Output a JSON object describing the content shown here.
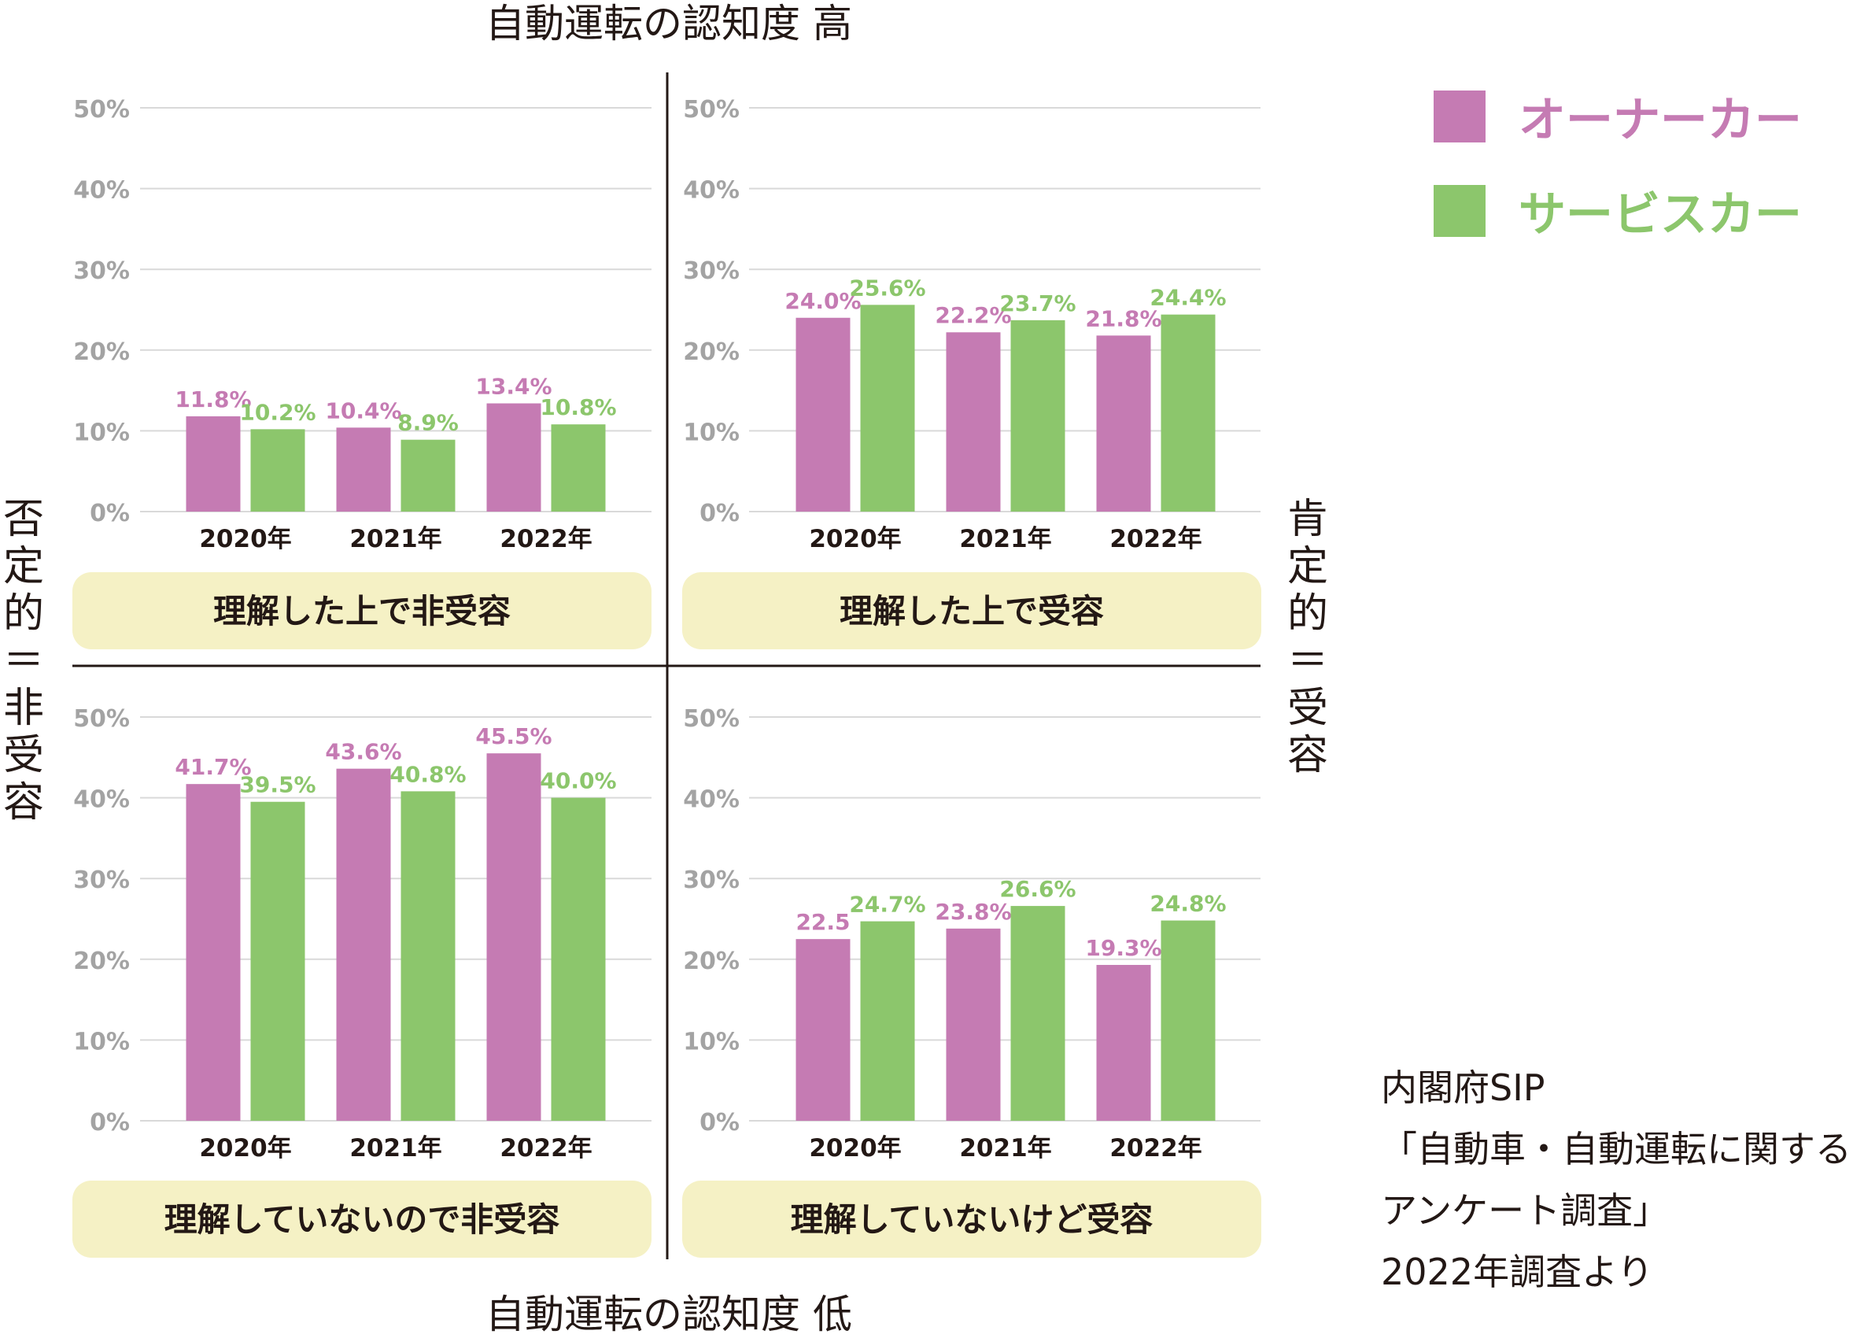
{
  "axis_top": "自動運転の認知度 高",
  "axis_bottom": "自動運転の認知度 低",
  "side_left": "否定的\n＝\n非受容",
  "side_right": "肯定的\n＝\n受容",
  "legend": [
    {
      "name": "オーナーカー",
      "color": "#c57bb3"
    },
    {
      "name": "サービスカー",
      "color": "#8cc66c"
    }
  ],
  "source_note": "内閣府SIP\n「自動車・自動運転に関する\nアンケート調査」\n2022年調査より",
  "colors": {
    "owner": "#c57bb3",
    "service": "#8cc66c",
    "label_box": "#f5f1c5",
    "grid": "#d9d9d9",
    "tick_text": "#a3a3a3"
  },
  "chart_data": [
    {
      "type": "bar",
      "quadrant": "top-left",
      "title": "理解した上で非受容",
      "categories": [
        "2020年",
        "2021年",
        "2022年"
      ],
      "ylim": [
        0,
        50
      ],
      "yticks": [
        "0%",
        "10%",
        "20%",
        "30%",
        "40%",
        "50%"
      ],
      "series": [
        {
          "name": "オーナーカー",
          "values": [
            11.8,
            10.4,
            13.4
          ],
          "labels": [
            "11.8%",
            "10.4%",
            "13.4%"
          ]
        },
        {
          "name": "サービスカー",
          "values": [
            10.2,
            8.9,
            10.8
          ],
          "labels": [
            "10.2%",
            "8.9%",
            "10.8%"
          ]
        }
      ]
    },
    {
      "type": "bar",
      "quadrant": "top-right",
      "title": "理解した上で受容",
      "categories": [
        "2020年",
        "2021年",
        "2022年"
      ],
      "ylim": [
        0,
        50
      ],
      "yticks": [
        "0%",
        "10%",
        "20%",
        "30%",
        "40%",
        "50%"
      ],
      "series": [
        {
          "name": "オーナーカー",
          "values": [
            24.0,
            22.2,
            21.8
          ],
          "labels": [
            "24.0%",
            "22.2%",
            "21.8%"
          ]
        },
        {
          "name": "サービスカー",
          "values": [
            25.6,
            23.7,
            24.4
          ],
          "labels": [
            "25.6%",
            "23.7%",
            "24.4%"
          ]
        }
      ]
    },
    {
      "type": "bar",
      "quadrant": "bottom-left",
      "title": "理解していないので非受容",
      "categories": [
        "2020年",
        "2021年",
        "2022年"
      ],
      "ylim": [
        0,
        50
      ],
      "yticks": [
        "0%",
        "10%",
        "20%",
        "30%",
        "40%",
        "50%"
      ],
      "series": [
        {
          "name": "オーナーカー",
          "values": [
            41.7,
            43.6,
            45.5
          ],
          "labels": [
            "41.7%",
            "43.6%",
            "45.5%"
          ]
        },
        {
          "name": "サービスカー",
          "values": [
            39.5,
            40.8,
            40.0
          ],
          "labels": [
            "39.5%",
            "40.8%",
            "40.0%"
          ]
        }
      ]
    },
    {
      "type": "bar",
      "quadrant": "bottom-right",
      "title": "理解していないけど受容",
      "categories": [
        "2020年",
        "2021年",
        "2022年"
      ],
      "ylim": [
        0,
        50
      ],
      "yticks": [
        "0%",
        "10%",
        "20%",
        "30%",
        "40%",
        "50%"
      ],
      "series": [
        {
          "name": "オーナーカー",
          "values": [
            22.5,
            23.8,
            19.3
          ],
          "labels": [
            "22.5",
            "23.8%",
            "19.3%"
          ]
        },
        {
          "name": "サービスカー",
          "values": [
            24.7,
            26.6,
            24.8
          ],
          "labels": [
            "24.7%",
            "26.6%",
            "24.8%"
          ]
        }
      ]
    }
  ]
}
